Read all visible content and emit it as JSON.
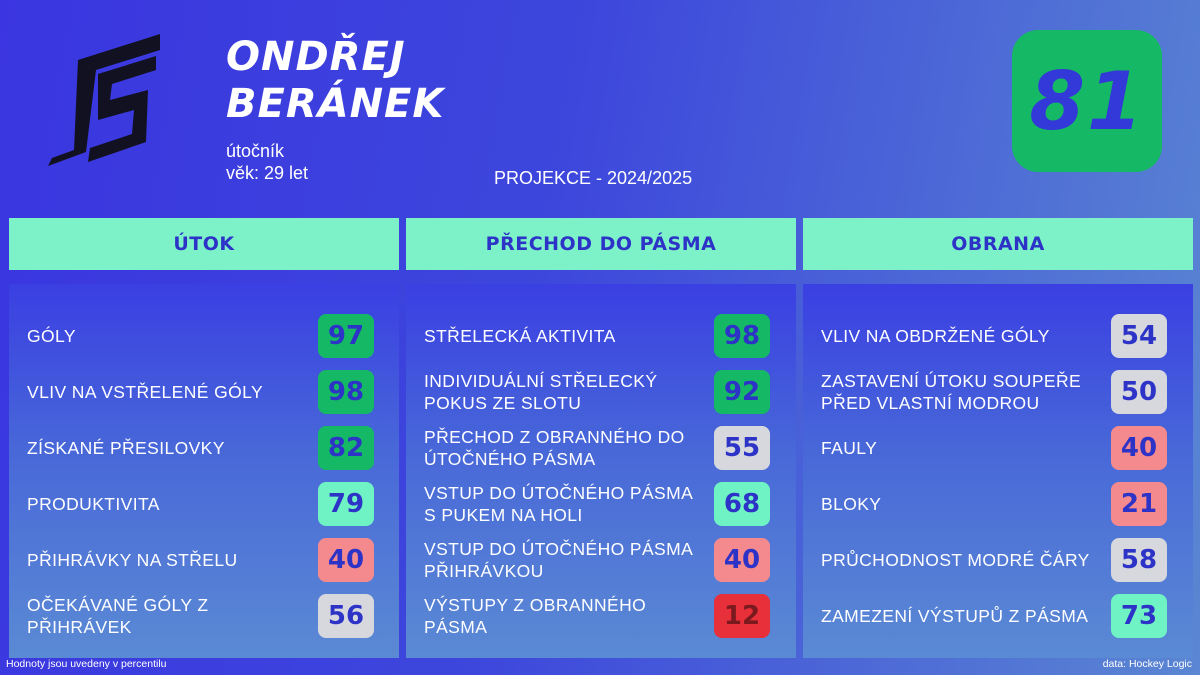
{
  "player": {
    "name_line1": "ONDŘEJ",
    "name_line2": "BERÁNEK",
    "position": "útočník",
    "age": "věk: 29 let",
    "overall": "81",
    "projection": "PROJEKCE - 2024/2025"
  },
  "colors": {
    "elite": "#15b864",
    "good": "#6ff2c4",
    "average": "#d6d8de",
    "below": "#f48a8e",
    "poor": "#e8303a",
    "number": "#2d33c7"
  },
  "columns": [
    {
      "title": "ÚTOK",
      "rows": [
        {
          "label": "GÓLY",
          "value": "97",
          "tier": "elite"
        },
        {
          "label": "VLIV NA VSTŘELENÉ GÓLY",
          "value": "98",
          "tier": "elite"
        },
        {
          "label": "ZÍSKANÉ PŘESILOVKY",
          "value": "82",
          "tier": "elite"
        },
        {
          "label": "PRODUKTIVITA",
          "value": "79",
          "tier": "good"
        },
        {
          "label": "PŘIHRÁVKY NA STŘELU",
          "value": "40",
          "tier": "below"
        },
        {
          "label": "OČEKÁVANÉ GÓLY Z PŘIHRÁVEK",
          "value": "56",
          "tier": "average"
        }
      ]
    },
    {
      "title": "PŘECHOD DO PÁSMA",
      "rows": [
        {
          "label": "STŘELECKÁ AKTIVITA",
          "value": "98",
          "tier": "elite"
        },
        {
          "label": "INDIVIDUÁLNÍ STŘELECKÝ POKUS ZE SLOTU",
          "value": "92",
          "tier": "elite"
        },
        {
          "label": "PŘECHOD Z OBRANNÉHO DO ÚTOČNÉHO PÁSMA",
          "value": "55",
          "tier": "average"
        },
        {
          "label": "VSTUP DO ÚTOČNÉHO PÁSMA S PUKEM NA HOLI",
          "value": "68",
          "tier": "good"
        },
        {
          "label": "VSTUP DO ÚTOČNÉHO PÁSMA PŘIHRÁVKOU",
          "value": "40",
          "tier": "below"
        },
        {
          "label": "VÝSTUPY Z OBRANNÉHO PÁSMA",
          "value": "12",
          "tier": "poor"
        }
      ]
    },
    {
      "title": "OBRANA",
      "rows": [
        {
          "label": "VLIV NA OBDRŽENÉ GÓLY",
          "value": "54",
          "tier": "average"
        },
        {
          "label": "ZASTAVENÍ ÚTOKU SOUPEŘE PŘED VLASTNÍ MODROU",
          "value": "50",
          "tier": "average"
        },
        {
          "label": "FAULY",
          "value": "40",
          "tier": "below"
        },
        {
          "label": "BLOKY",
          "value": "21",
          "tier": "below"
        },
        {
          "label": "PRŮCHODNOST MODRÉ ČÁRY",
          "value": "58",
          "tier": "average"
        },
        {
          "label": "ZAMEZENÍ VÝSTUPŮ Z PÁSMA",
          "value": "73",
          "tier": "good"
        }
      ]
    }
  ],
  "footer": {
    "note": "Hodnoty jsou uvedeny v percentilu",
    "source": "data: Hockey Logic"
  }
}
